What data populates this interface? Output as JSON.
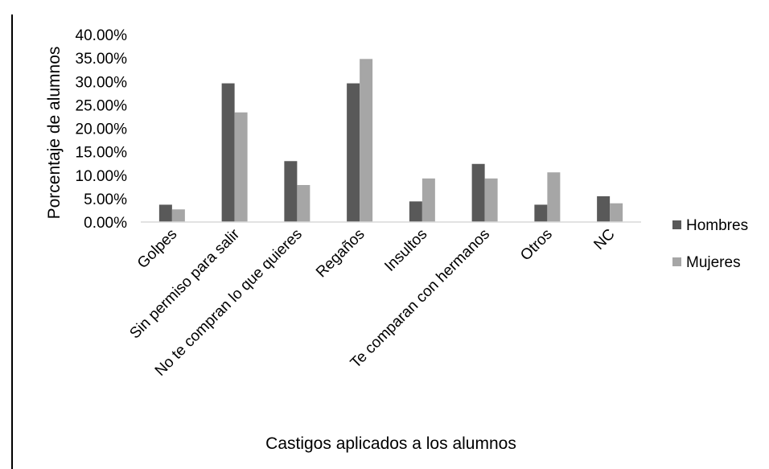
{
  "chart_data": {
    "type": "bar",
    "title": "",
    "xlabel": "Castigos aplicados a los alumnos",
    "ylabel": "Porcentaje de alumnos",
    "ylim": [
      0,
      40
    ],
    "yticks": [
      "0.00%",
      "5.00%",
      "10.00%",
      "15.00%",
      "20.00%",
      "25.00%",
      "30.00%",
      "35.00%",
      "40.00%"
    ],
    "grid": false,
    "legend_position": "right",
    "categories": [
      "Golpes",
      "Sin permiso para salir",
      "No te compran lo que quieres",
      "Regaños",
      "Insultos",
      "Te comparan con hermanos",
      "Otros",
      "NC"
    ],
    "series": [
      {
        "name": "Hombres",
        "color": "#595959",
        "values": [
          3.7,
          29.6,
          13.0,
          29.6,
          4.4,
          12.4,
          3.7,
          5.5
        ]
      },
      {
        "name": "Mujeres",
        "color": "#a6a6a6",
        "values": [
          2.7,
          23.4,
          7.9,
          34.8,
          9.3,
          9.3,
          10.6,
          4.0
        ]
      }
    ]
  }
}
